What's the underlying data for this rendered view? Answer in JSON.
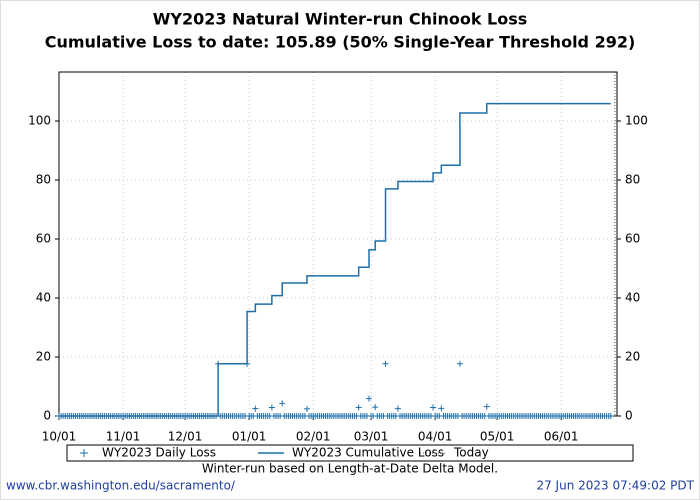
{
  "chart_data": {
    "type": "line",
    "title": "WY2023 Natural Winter-run Chinook Loss",
    "subtitle": "Cumulative Loss to date: 105.89 (50% Single-Year Threshold 292)",
    "note": "Winter-run based on Length-at-Date Delta Model.",
    "source": "www.cbr.washington.edu/sacramento/",
    "timestamp": "27 Jun 2023 07:49:02 PDT",
    "xlim": [
      "10/01",
      "06/28"
    ],
    "xticks": [
      "10/01",
      "11/01",
      "12/01",
      "01/01",
      "02/01",
      "03/01",
      "04/01",
      "05/01",
      "06/01"
    ],
    "ylim": [
      0,
      116.6
    ],
    "yticks": [
      0,
      20,
      40,
      60,
      80,
      100
    ],
    "grid": true,
    "legend": "bottom",
    "today": {
      "name": "Today",
      "x": "06/27",
      "color": "#555555"
    },
    "series": [
      {
        "name": "WY2023 Daily Loss",
        "color": "#1f6fa8",
        "marker": "+",
        "x": [
          "10/01",
          "10/02",
          "10/03",
          "10/04",
          "10/05",
          "10/06",
          "10/07",
          "10/08",
          "10/09",
          "10/10",
          "10/11",
          "10/12",
          "10/13",
          "10/14",
          "10/15",
          "10/16",
          "10/17",
          "10/18",
          "10/19",
          "10/20",
          "10/21",
          "10/22",
          "10/23",
          "10/24",
          "10/25",
          "10/26",
          "10/27",
          "10/28",
          "10/29",
          "10/30",
          "10/31",
          "11/01",
          "11/02",
          "11/03",
          "11/04",
          "11/05",
          "11/06",
          "11/07",
          "11/08",
          "11/09",
          "11/10",
          "11/11",
          "11/12",
          "11/13",
          "11/14",
          "11/15",
          "11/16",
          "11/17",
          "11/18",
          "11/19",
          "11/20",
          "11/21",
          "11/22",
          "11/23",
          "11/24",
          "11/25",
          "11/26",
          "11/27",
          "11/28",
          "11/29",
          "11/30",
          "12/01",
          "12/02",
          "12/03",
          "12/04",
          "12/05",
          "12/06",
          "12/07",
          "12/08",
          "12/09",
          "12/10",
          "12/11",
          "12/12",
          "12/13",
          "12/14",
          "12/15",
          "12/16",
          "12/17",
          "12/18",
          "12/19",
          "12/20",
          "12/21",
          "12/22",
          "12/23",
          "12/24",
          "12/25",
          "12/26",
          "12/27",
          "12/28",
          "12/29",
          "12/30",
          "12/31",
          "01/01",
          "01/02",
          "01/03",
          "01/04",
          "01/05",
          "01/06",
          "01/07",
          "01/08",
          "01/09",
          "01/10",
          "01/11",
          "01/12",
          "01/13",
          "01/14",
          "01/15",
          "01/16",
          "01/17",
          "01/18",
          "01/19",
          "01/20",
          "01/21",
          "01/22",
          "01/23",
          "01/24",
          "01/25",
          "01/26",
          "01/27",
          "01/28",
          "01/29",
          "01/30",
          "01/31",
          "02/01",
          "02/02",
          "02/03",
          "02/04",
          "02/05",
          "02/06",
          "02/07",
          "02/08",
          "02/09",
          "02/10",
          "02/11",
          "02/12",
          "02/13",
          "02/14",
          "02/15",
          "02/16",
          "02/17",
          "02/18",
          "02/19",
          "02/20",
          "02/21",
          "02/22",
          "02/23",
          "02/24",
          "02/25",
          "02/26",
          "02/27",
          "02/28",
          "03/01",
          "03/02",
          "03/03",
          "03/04",
          "03/05",
          "03/06",
          "03/07",
          "03/08",
          "03/09",
          "03/10",
          "03/11",
          "03/12",
          "03/13",
          "03/14",
          "03/15",
          "03/16",
          "03/17",
          "03/18",
          "03/19",
          "03/20",
          "03/21",
          "03/22",
          "03/23",
          "03/24",
          "03/25",
          "03/26",
          "03/27",
          "03/28",
          "03/29",
          "03/30",
          "03/31",
          "04/01",
          "04/02",
          "04/03",
          "04/04",
          "04/05",
          "04/06",
          "04/07",
          "04/08",
          "04/09",
          "04/10",
          "04/11",
          "04/12",
          "04/13",
          "04/14",
          "04/15",
          "04/16",
          "04/17",
          "04/18",
          "04/19",
          "04/20",
          "04/21",
          "04/22",
          "04/23",
          "04/24",
          "04/25",
          "04/26",
          "04/27",
          "04/28",
          "04/29",
          "04/30",
          "05/01",
          "05/02",
          "05/03",
          "05/04",
          "05/05",
          "05/06",
          "05/07",
          "05/08",
          "05/09",
          "05/10",
          "05/11",
          "05/12",
          "05/13",
          "05/14",
          "05/15",
          "05/16",
          "05/17",
          "05/18",
          "05/19",
          "05/20",
          "05/21",
          "05/22",
          "05/23",
          "05/24",
          "05/25",
          "05/26",
          "05/27",
          "05/28",
          "05/29",
          "05/30",
          "05/31",
          "06/01",
          "06/02",
          "06/03",
          "06/04",
          "06/05",
          "06/06",
          "06/07",
          "06/08",
          "06/09",
          "06/10",
          "06/11",
          "06/12",
          "06/13",
          "06/14",
          "06/15",
          "06/16",
          "06/17",
          "06/18",
          "06/19",
          "06/20",
          "06/21",
          "06/22",
          "06/23",
          "06/24",
          "06/25"
        ],
        "values": [
          0,
          0,
          0,
          0,
          0,
          0,
          0,
          0,
          0,
          0,
          0,
          0,
          0,
          0,
          0,
          0,
          0,
          0,
          0,
          0,
          0,
          0,
          0,
          0,
          0,
          0,
          0,
          0,
          0,
          0,
          0,
          0,
          0,
          0,
          0,
          0,
          0,
          0,
          0,
          0,
          0,
          0,
          0,
          0,
          0,
          0,
          0,
          0,
          0,
          0,
          0,
          0,
          0,
          0,
          0,
          0,
          0,
          0,
          0,
          0,
          0,
          0,
          0,
          0,
          0,
          0,
          0,
          0,
          0,
          0,
          0,
          0,
          0,
          0,
          0,
          0,
          0,
          17.7,
          0,
          0,
          0,
          0,
          0,
          0,
          0,
          0,
          0,
          0,
          0,
          0,
          0,
          17.7,
          0,
          0,
          0,
          2.5,
          0,
          0,
          0,
          0,
          0,
          0,
          0,
          2.9,
          0,
          0,
          0,
          0,
          4.3,
          0,
          0,
          0,
          0,
          0,
          0,
          0,
          0,
          0,
          0,
          0,
          2.4,
          0,
          0,
          0,
          0,
          0,
          0,
          0,
          0,
          0,
          0,
          0,
          0,
          0,
          0,
          0,
          0,
          0,
          0,
          0,
          0,
          0,
          0,
          0,
          0,
          2.9,
          0,
          0,
          0,
          0,
          5.9,
          0,
          0,
          3,
          0,
          0,
          0,
          0,
          17.7,
          0,
          0,
          0,
          0,
          0,
          2.5,
          0,
          0,
          0,
          0,
          0,
          0,
          0,
          0,
          0,
          0,
          0,
          0,
          0,
          0,
          0,
          0,
          2.9,
          0,
          0,
          0,
          2.6,
          0,
          0,
          0,
          0,
          0,
          0,
          0,
          0,
          17.7,
          0,
          0,
          0,
          0,
          0,
          0,
          0,
          0,
          0,
          0,
          0,
          0,
          3.19,
          0,
          0,
          0,
          0,
          0,
          0,
          0,
          0,
          0,
          0,
          0,
          0,
          0,
          0,
          0,
          0,
          0,
          0,
          0,
          0,
          0,
          0,
          0,
          0,
          0,
          0,
          0,
          0,
          0,
          0,
          0,
          0,
          0,
          0,
          0,
          0,
          0,
          0,
          0,
          0,
          0,
          0,
          0,
          0,
          0,
          0,
          0,
          0,
          0,
          0,
          0,
          0,
          0,
          0,
          0,
          0,
          0,
          0,
          0,
          0
        ]
      },
      {
        "name": "WY2023 Cumulative Loss",
        "color": "#1f6fa8",
        "drawstyle": "steps-post",
        "x": [
          "10/01",
          "12/17",
          "12/31",
          "01/04",
          "01/12",
          "01/17",
          "01/29",
          "02/23",
          "02/28",
          "03/03",
          "03/08",
          "03/14",
          "03/31",
          "04/04",
          "04/13",
          "04/26",
          "06/25"
        ],
        "values": [
          0,
          17.7,
          35.4,
          37.9,
          40.8,
          45.1,
          47.5,
          50.4,
          56.3,
          59.3,
          77.0,
          79.5,
          82.4,
          85.0,
          102.7,
          105.89,
          105.89
        ]
      }
    ]
  }
}
